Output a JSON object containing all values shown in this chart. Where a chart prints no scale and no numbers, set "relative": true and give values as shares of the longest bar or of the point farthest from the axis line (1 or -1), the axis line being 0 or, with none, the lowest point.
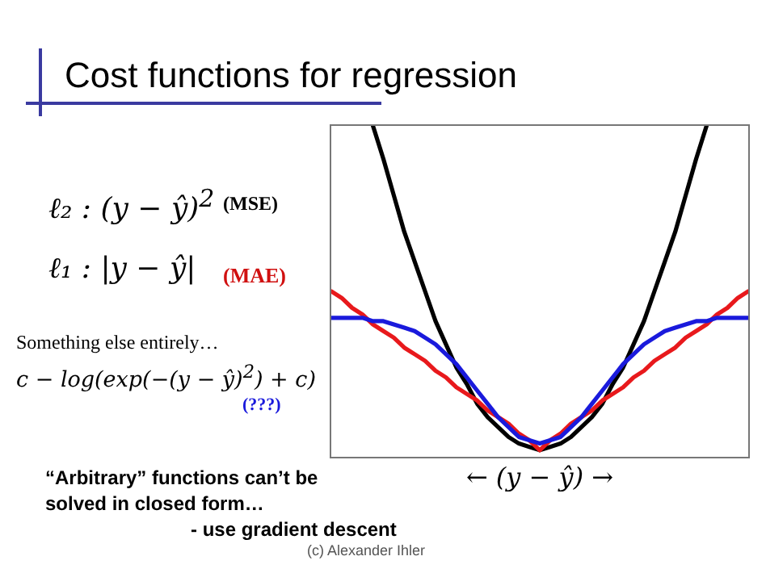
{
  "chart_data": {
    "type": "line",
    "title": "Cost functions for regression",
    "xlabel": "← (y − ŷ) →",
    "relative": true,
    "marker": "none",
    "annotations": [
      "ℓ₂  :  (y − ŷ)$^{2}$",
      "(MSE)",
      "ℓ₁  :  |y − ŷ|",
      "(MAE)",
      "Something else entirely…",
      "c − log(exp(−(y − ŷ)$^{2}$) + c)",
      "(???)",
      "“Arbitrary” functions can’t be solved in closed form…",
      "- use gradient descent",
      "(c) Alexander Ihler"
    ],
    "categories": [
      null,
      null,
      null,
      null,
      null,
      null,
      null,
      null,
      null,
      null,
      null,
      null,
      null,
      null,
      null,
      null,
      null,
      null,
      null,
      null,
      null,
      null,
      null,
      null,
      null,
      null,
      null,
      null,
      null,
      null,
      null,
      null,
      null,
      null,
      null,
      null,
      null,
      null,
      null,
      null,
      null
    ],
    "series": [
      {
        "color": "#000000",
        "values": [
          null,
          null,
          null,
          null,
          1.0,
          0.9,
          0.79,
          0.68,
          0.59,
          0.5,
          0.41,
          0.34,
          0.27,
          0.22,
          0.16,
          0.12,
          0.09,
          0.06,
          0.04,
          0.03,
          0.02,
          0.03,
          0.04,
          0.06,
          0.09,
          0.12,
          0.16,
          0.22,
          0.27,
          0.34,
          0.41,
          0.5,
          0.59,
          0.68,
          0.79,
          0.9,
          1.0,
          null,
          null,
          null,
          null
        ]
      },
      {
        "color": "#e8191c",
        "values": [
          0.5,
          0.48,
          0.45,
          0.43,
          0.4,
          0.38,
          0.36,
          0.33,
          0.31,
          0.29,
          0.26,
          0.24,
          0.21,
          0.19,
          0.17,
          0.14,
          0.12,
          0.1,
          0.07,
          0.05,
          0.02,
          0.05,
          0.07,
          0.1,
          0.12,
          0.14,
          0.17,
          0.19,
          0.21,
          0.24,
          0.26,
          0.29,
          0.31,
          0.33,
          0.36,
          0.38,
          0.4,
          0.43,
          0.45,
          0.48,
          0.5
        ]
      },
      {
        "color": "#1a1adc",
        "values": [
          0.42,
          0.42,
          0.42,
          0.42,
          0.41,
          0.41,
          0.4,
          0.39,
          0.38,
          0.36,
          0.34,
          0.31,
          0.28,
          0.24,
          0.2,
          0.16,
          0.12,
          0.09,
          0.06,
          0.05,
          0.04,
          0.05,
          0.06,
          0.09,
          0.12,
          0.16,
          0.2,
          0.24,
          0.28,
          0.31,
          0.34,
          0.36,
          0.38,
          0.39,
          0.4,
          0.41,
          0.41,
          0.42,
          0.42,
          0.42,
          0.42
        ]
      }
    ]
  }
}
